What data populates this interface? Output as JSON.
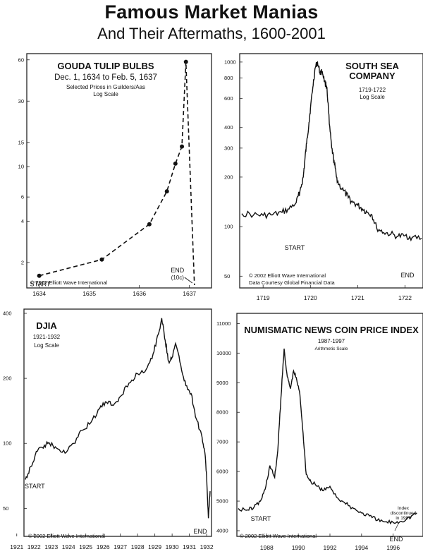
{
  "header": {
    "title": "Famous Market Manias",
    "subtitle": "And Their Aftermaths, 1600-2001"
  },
  "chart_data": [
    {
      "id": "tulip",
      "type": "line",
      "title": "GOUDA TULIP BULBS",
      "subtitle": "Dec. 1, 1634 to Feb. 5, 1637",
      "note": "Selected Prices in Guilders/Aas",
      "scale_label": "Log Scale",
      "scale": "log",
      "x_ticks": [
        1634,
        1635,
        1636,
        1637
      ],
      "x_tick_labels": [
        "1634",
        "1635",
        "1636",
        "1637"
      ],
      "y_ticks": [
        2,
        4,
        6,
        10,
        15,
        30,
        60
      ],
      "y_tick_labels": [
        "2",
        "4",
        "6",
        "10",
        "15",
        "30",
        "60"
      ],
      "xlim": [
        1633.85,
        1637.3
      ],
      "ylim": [
        1.4,
        62
      ],
      "x": [
        1634.0,
        1635.25,
        1636.2,
        1636.55,
        1636.72,
        1636.85,
        1636.93
      ],
      "y": [
        1.6,
        2.1,
        3.8,
        6.6,
        10.5,
        14,
        58
      ],
      "end_point": [
        1637.1,
        1.4
      ],
      "start_label": "START",
      "end_label": "END",
      "end_note": "(10c)",
      "copyright": "© 2002 Elliott Wave International"
    },
    {
      "id": "southsea",
      "type": "line",
      "title_lines": [
        "SOUTH SEA",
        "COMPANY"
      ],
      "subtitle": "1719-1722",
      "scale_label": "Log Scale",
      "scale": "log",
      "x_ticks": [
        1719,
        1720,
        1721,
        1722
      ],
      "x_tick_labels": [
        "1719",
        "1720",
        "1721",
        "1722"
      ],
      "y_ticks": [
        50,
        100,
        200,
        300,
        400,
        600,
        800,
        1000
      ],
      "y_tick_labels": [
        "50",
        "100",
        "200",
        "300",
        "400",
        "600",
        "800",
        "1000"
      ],
      "xlim": [
        1718.55,
        1722.35
      ],
      "ylim": [
        45,
        1060
      ],
      "x": [
        1718.55,
        1718.8,
        1719.0,
        1719.2,
        1719.4,
        1719.55,
        1719.7,
        1719.78,
        1719.85,
        1719.88,
        1719.92,
        1719.97,
        1720.0,
        1720.05,
        1720.1,
        1720.15,
        1720.2,
        1720.25,
        1720.3,
        1720.35,
        1720.4,
        1720.45,
        1720.5,
        1720.55,
        1720.6,
        1720.7,
        1720.8,
        1720.9,
        1721.0,
        1721.1,
        1721.2,
        1721.3,
        1721.4,
        1721.55,
        1721.7,
        1721.85,
        1722.0,
        1722.15,
        1722.35
      ],
      "y": [
        120,
        118,
        117,
        118,
        122,
        128,
        140,
        165,
        200,
        250,
        320,
        430,
        520,
        700,
        920,
        1000,
        860,
        880,
        760,
        700,
        420,
        300,
        250,
        200,
        180,
        165,
        150,
        140,
        135,
        128,
        122,
        118,
        98,
        92,
        90,
        87,
        88,
        86,
        85
      ],
      "start_label": "START",
      "end_label": "END",
      "copyright": "© 2002 Elliott Wave International",
      "source": "Data Courtesy Global Financial Data"
    },
    {
      "id": "djia",
      "type": "line",
      "title": "DJIA",
      "subtitle": "1921-1932",
      "scale_label": "Log Scale",
      "scale": "log",
      "x_ticks": [
        1921,
        1922,
        1923,
        1924,
        1925,
        1926,
        1927,
        1928,
        1929,
        1930,
        1931,
        1932
      ],
      "x_tick_labels": [
        "1921",
        "1922",
        "1923",
        "1924",
        "1925",
        "1926",
        "1927",
        "1928",
        "1929",
        "1930",
        "1931",
        "1932"
      ],
      "y_ticks": [
        50,
        100,
        200,
        400
      ],
      "y_tick_labels": [
        "50",
        "100",
        "200",
        "400"
      ],
      "xlim": [
        1921.5,
        1932.2
      ],
      "ylim": [
        40,
        400
      ],
      "x": [
        1921.5,
        1921.8,
        1922.2,
        1922.6,
        1922.9,
        1923.3,
        1923.8,
        1924.3,
        1924.8,
        1925.3,
        1925.8,
        1926.2,
        1926.6,
        1927.0,
        1927.5,
        1928.0,
        1928.5,
        1928.9,
        1929.2,
        1929.4,
        1929.6,
        1929.8,
        1930.0,
        1930.2,
        1930.5,
        1930.8,
        1931.1,
        1931.4,
        1931.7,
        1931.9,
        1932.0,
        1932.1,
        1932.2
      ],
      "y": [
        68,
        78,
        92,
        98,
        100,
        95,
        90,
        100,
        115,
        125,
        145,
        155,
        150,
        165,
        190,
        210,
        220,
        260,
        320,
        380,
        300,
        240,
        250,
        290,
        230,
        185,
        170,
        130,
        110,
        90,
        70,
        45,
        60
      ],
      "start_label": "START",
      "end_label": "END",
      "copyright": "© 2002 Elliott Wave International"
    },
    {
      "id": "coin",
      "type": "line",
      "title": "NUMISMATIC NEWS COIN PRICE INDEX",
      "subtitle": "1987-1997",
      "scale_label": "Arithmetic Scale",
      "scale": "linear",
      "x_ticks": [
        1988,
        1990,
        1992,
        1994,
        1996
      ],
      "x_tick_labels": [
        "1988",
        "1990",
        "1992",
        "1994",
        "1996"
      ],
      "y_ticks": [
        4000,
        5000,
        6000,
        7000,
        8000,
        9000,
        10000,
        11000
      ],
      "y_tick_labels": [
        "4000",
        "5000",
        "6000",
        "7000",
        "8000",
        "9000",
        "10000",
        "11000"
      ],
      "xlim": [
        1986.2,
        1997.8
      ],
      "ylim": [
        4000,
        11200
      ],
      "x": [
        1986.2,
        1986.8,
        1987.2,
        1987.6,
        1987.9,
        1988.2,
        1988.5,
        1988.7,
        1988.9,
        1989.1,
        1989.3,
        1989.5,
        1989.7,
        1989.9,
        1990.1,
        1990.3,
        1990.5,
        1990.8,
        1991.2,
        1991.6,
        1992.0,
        1992.5,
        1993.0,
        1993.5,
        1994.0,
        1994.5,
        1995.0,
        1995.5,
        1996.0,
        1996.5,
        1997.0,
        1997.5
      ],
      "y": [
        4750,
        4700,
        4800,
        5000,
        5400,
        6200,
        5800,
        6700,
        8500,
        10150,
        9200,
        8800,
        9400,
        9100,
        8600,
        7300,
        5900,
        5650,
        5500,
        5350,
        5500,
        5100,
        4900,
        4750,
        4600,
        4500,
        4350,
        4300,
        4280,
        4320,
        4450,
        4600
      ],
      "start_label": "START",
      "end_label": "END",
      "end_note": "Index discontinued in 1997",
      "copyright": "© 2002 Elliott Wave International"
    }
  ]
}
